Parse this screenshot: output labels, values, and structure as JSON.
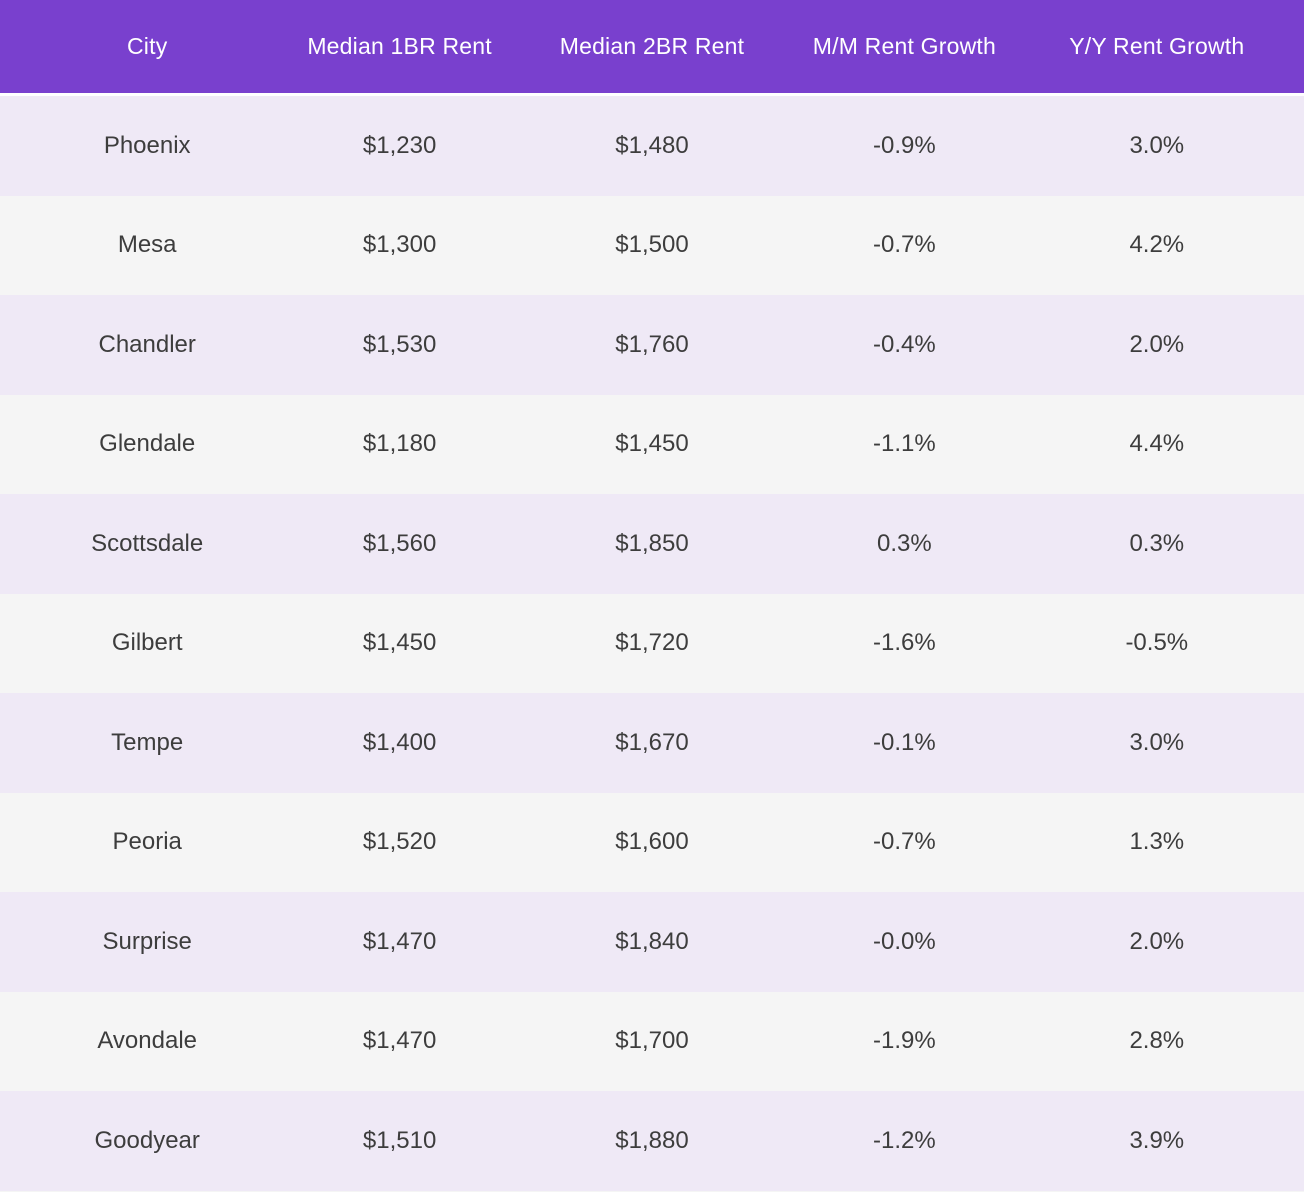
{
  "colors": {
    "header_bg": "#7940CE",
    "header_text": "#FFFFFF",
    "row_alt_bg": "#EFE9F6",
    "row_bg": "#F5F5F5",
    "cell_text": "#3D3D3D"
  },
  "table": {
    "columns": [
      {
        "label": "City"
      },
      {
        "label": "Median 1BR Rent"
      },
      {
        "label": "Median 2BR Rent"
      },
      {
        "label": "M/M Rent Growth"
      },
      {
        "label": "Y/Y Rent Growth"
      }
    ],
    "rows": [
      {
        "city": "Phoenix",
        "rent_1br": "$1,230",
        "rent_2br": "$1,480",
        "mm_growth": "-0.9%",
        "yy_growth": "3.0%"
      },
      {
        "city": "Mesa",
        "rent_1br": "$1,300",
        "rent_2br": "$1,500",
        "mm_growth": "-0.7%",
        "yy_growth": "4.2%"
      },
      {
        "city": "Chandler",
        "rent_1br": "$1,530",
        "rent_2br": "$1,760",
        "mm_growth": "-0.4%",
        "yy_growth": "2.0%"
      },
      {
        "city": "Glendale",
        "rent_1br": "$1,180",
        "rent_2br": "$1,450",
        "mm_growth": "-1.1%",
        "yy_growth": "4.4%"
      },
      {
        "city": "Scottsdale",
        "rent_1br": "$1,560",
        "rent_2br": "$1,850",
        "mm_growth": "0.3%",
        "yy_growth": "0.3%"
      },
      {
        "city": "Gilbert",
        "rent_1br": "$1,450",
        "rent_2br": "$1,720",
        "mm_growth": "-1.6%",
        "yy_growth": "-0.5%"
      },
      {
        "city": "Tempe",
        "rent_1br": "$1,400",
        "rent_2br": "$1,670",
        "mm_growth": "-0.1%",
        "yy_growth": "3.0%"
      },
      {
        "city": "Peoria",
        "rent_1br": "$1,520",
        "rent_2br": "$1,600",
        "mm_growth": "-0.7%",
        "yy_growth": "1.3%"
      },
      {
        "city": "Surprise",
        "rent_1br": "$1,470",
        "rent_2br": "$1,840",
        "mm_growth": "-0.0%",
        "yy_growth": "2.0%"
      },
      {
        "city": "Avondale",
        "rent_1br": "$1,470",
        "rent_2br": "$1,700",
        "mm_growth": "-1.9%",
        "yy_growth": "2.8%"
      },
      {
        "city": "Goodyear",
        "rent_1br": "$1,510",
        "rent_2br": "$1,880",
        "mm_growth": "-1.2%",
        "yy_growth": "3.9%"
      }
    ]
  },
  "chart_data": {
    "type": "table",
    "title": "",
    "columns": [
      "City",
      "Median 1BR Rent",
      "Median 2BR Rent",
      "M/M Rent Growth",
      "Y/Y Rent Growth"
    ],
    "categories": [
      "Phoenix",
      "Mesa",
      "Chandler",
      "Glendale",
      "Scottsdale",
      "Gilbert",
      "Tempe",
      "Peoria",
      "Surprise",
      "Avondale",
      "Goodyear"
    ],
    "series": [
      {
        "name": "Median 1BR Rent ($)",
        "values": [
          1230,
          1300,
          1530,
          1180,
          1560,
          1450,
          1400,
          1520,
          1470,
          1470,
          1510
        ]
      },
      {
        "name": "Median 2BR Rent ($)",
        "values": [
          1480,
          1500,
          1760,
          1450,
          1850,
          1720,
          1670,
          1600,
          1840,
          1700,
          1880
        ]
      },
      {
        "name": "M/M Rent Growth (%)",
        "values": [
          -0.9,
          -0.7,
          -0.4,
          -1.1,
          0.3,
          -1.6,
          -0.1,
          -0.7,
          -0.0,
          -1.9,
          -1.2
        ]
      },
      {
        "name": "Y/Y Rent Growth (%)",
        "values": [
          3.0,
          4.2,
          2.0,
          4.4,
          0.3,
          -0.5,
          3.0,
          1.3,
          2.0,
          2.8,
          3.9
        ]
      }
    ],
    "layout": {
      "header_bg": "#7940CE",
      "zebra_striping": true,
      "text_align": "center"
    }
  }
}
